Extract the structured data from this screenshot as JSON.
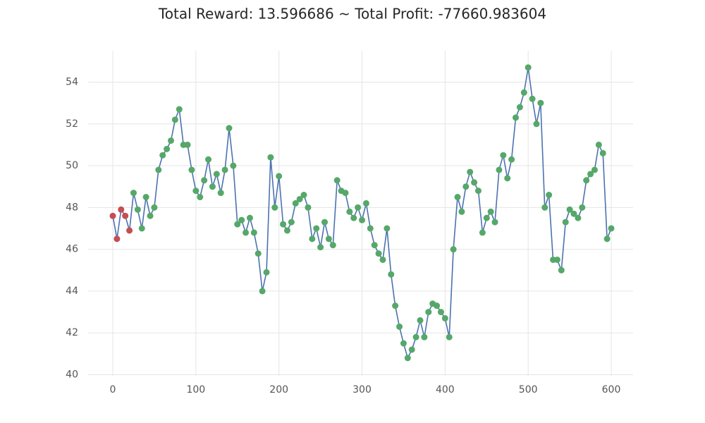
{
  "chart_data": {
    "type": "line",
    "title": "Total Reward: 13.596686 ~ Total Profit: -77660.983604",
    "xlim": [
      -29.7,
      626.3
    ],
    "ylim": [
      39.95,
      55.5
    ],
    "xticks": [
      0,
      100,
      200,
      300,
      400,
      500,
      600
    ],
    "yticks": [
      40,
      42,
      44,
      46,
      48,
      50,
      52,
      54
    ],
    "grid": true,
    "series": [
      {
        "color": "#4c72b0",
        "marker": false,
        "x": [
          0,
          5,
          10,
          15,
          20,
          25,
          30,
          35,
          40,
          45,
          50,
          55,
          60,
          65,
          70,
          75,
          80,
          85,
          90,
          95,
          100,
          105,
          110,
          115,
          120,
          125,
          130,
          135,
          140,
          145,
          150,
          155,
          160,
          165,
          170,
          175,
          180,
          185,
          190,
          195,
          200,
          205,
          210,
          215,
          220,
          225,
          230,
          235,
          240,
          245,
          250,
          255,
          260,
          265,
          270,
          275,
          280,
          285,
          290,
          295,
          300,
          305,
          310,
          315,
          320,
          325,
          330,
          335,
          340,
          345,
          350,
          355,
          360,
          365,
          370,
          375,
          380,
          385,
          390,
          395,
          400,
          405,
          410,
          415,
          420,
          425,
          430,
          435,
          440,
          445,
          450,
          455,
          460,
          465,
          470,
          475,
          480,
          485,
          490,
          495,
          500,
          505,
          510,
          515,
          520,
          525,
          530,
          535,
          540,
          545,
          550,
          555,
          560,
          565,
          570,
          575,
          580,
          585,
          590,
          595,
          600
        ],
        "values": [
          47.6,
          46.5,
          47.9,
          47.6,
          46.9,
          48.7,
          47.9,
          47.0,
          48.5,
          47.6,
          48.0,
          49.8,
          50.5,
          50.8,
          51.2,
          52.2,
          52.7,
          51.0,
          51.0,
          49.8,
          48.8,
          48.5,
          49.3,
          50.3,
          49.0,
          49.6,
          48.7,
          49.8,
          51.8,
          50.0,
          47.2,
          47.4,
          46.8,
          47.5,
          46.8,
          45.8,
          44.0,
          44.9,
          50.4,
          48.0,
          49.5,
          47.2,
          46.9,
          47.3,
          48.2,
          48.4,
          48.6,
          48.0,
          46.5,
          47.0,
          46.1,
          47.3,
          46.5,
          46.2,
          49.3,
          48.8,
          48.7,
          47.8,
          47.5,
          48.0,
          47.4,
          48.2,
          47.0,
          46.2,
          45.8,
          45.5,
          47.0,
          44.8,
          43.3,
          42.3,
          41.5,
          40.8,
          41.2,
          41.8,
          42.6,
          41.8,
          43.0,
          43.4,
          43.3,
          43.0,
          42.7,
          41.8,
          46.0,
          48.5,
          47.8,
          49.0,
          49.7,
          49.2,
          48.8,
          46.8,
          47.5,
          47.8,
          47.3,
          49.8,
          50.5,
          49.4,
          50.3,
          52.3,
          52.8,
          53.5,
          54.7,
          53.2,
          52.0,
          53.0,
          48.0,
          48.6,
          45.5,
          45.5,
          45.0,
          47.3,
          47.9,
          47.7,
          47.5,
          48.0,
          49.3,
          49.6,
          49.8,
          51.0,
          50.6,
          46.5,
          47.0
        ]
      },
      {
        "color": "#c44e52",
        "marker": true,
        "line": false,
        "x": [
          0,
          5,
          10,
          15,
          20
        ],
        "values": [
          47.6,
          46.5,
          47.9,
          47.6,
          46.9
        ]
      },
      {
        "color": "#55a868",
        "marker": true,
        "line": false,
        "x": [
          25,
          30,
          35,
          40,
          45,
          50,
          55,
          60,
          65,
          70,
          75,
          80,
          85,
          90,
          95,
          100,
          105,
          110,
          115,
          120,
          125,
          130,
          135,
          140,
          145,
          150,
          155,
          160,
          165,
          170,
          175,
          180,
          185,
          190,
          195,
          200,
          205,
          210,
          215,
          220,
          225,
          230,
          235,
          240,
          245,
          250,
          255,
          260,
          265,
          270,
          275,
          280,
          285,
          290,
          295,
          300,
          305,
          310,
          315,
          320,
          325,
          330,
          335,
          340,
          345,
          350,
          355,
          360,
          365,
          370,
          375,
          380,
          385,
          390,
          395,
          400,
          405,
          410,
          415,
          420,
          425,
          430,
          435,
          440,
          445,
          450,
          455,
          460,
          465,
          470,
          475,
          480,
          485,
          490,
          495,
          500,
          505,
          510,
          515,
          520,
          525,
          530,
          535,
          540,
          545,
          550,
          555,
          560,
          565,
          570,
          575,
          580,
          585,
          590,
          595,
          600
        ],
        "values": [
          48.7,
          47.9,
          47.0,
          48.5,
          47.6,
          48.0,
          49.8,
          50.5,
          50.8,
          51.2,
          52.2,
          52.7,
          51.0,
          51.0,
          49.8,
          48.8,
          48.5,
          49.3,
          50.3,
          49.0,
          49.6,
          48.7,
          49.8,
          51.8,
          50.0,
          47.2,
          47.4,
          46.8,
          47.5,
          46.8,
          45.8,
          44.0,
          44.9,
          50.4,
          48.0,
          49.5,
          47.2,
          46.9,
          47.3,
          48.2,
          48.4,
          48.6,
          48.0,
          46.5,
          47.0,
          46.1,
          47.3,
          46.5,
          46.2,
          49.3,
          48.8,
          48.7,
          47.8,
          47.5,
          48.0,
          47.4,
          48.2,
          47.0,
          46.2,
          45.8,
          45.5,
          47.0,
          44.8,
          43.3,
          42.3,
          41.5,
          40.8,
          41.2,
          41.8,
          42.6,
          41.8,
          43.0,
          43.4,
          43.3,
          43.0,
          42.7,
          41.8,
          46.0,
          48.5,
          47.8,
          49.0,
          49.7,
          49.2,
          48.8,
          46.8,
          47.5,
          47.8,
          47.3,
          49.8,
          50.5,
          49.4,
          50.3,
          52.3,
          52.8,
          53.5,
          54.7,
          53.2,
          52.0,
          53.0,
          48.0,
          48.6,
          45.5,
          45.5,
          45.0,
          47.3,
          47.9,
          47.7,
          47.5,
          48.0,
          49.3,
          49.6,
          49.8,
          51.0,
          50.6,
          46.5,
          47.0
        ]
      }
    ]
  }
}
